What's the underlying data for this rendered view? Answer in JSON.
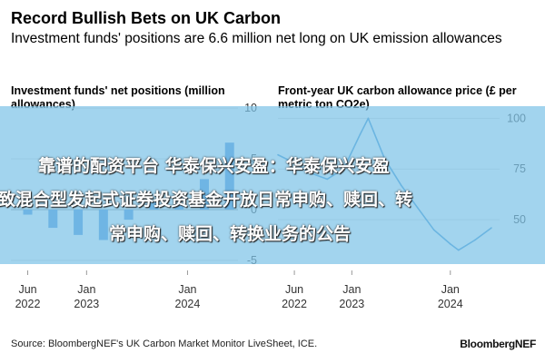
{
  "header": {
    "title": "Record Bullish Bets on UK Carbon",
    "subtitle": "Investment funds' positions are 6.6 million net long on UK emission allowances"
  },
  "chart_data": [
    {
      "type": "bar",
      "title": "Investment funds' net positions (million allowances)",
      "y_ticks": [
        "10",
        "5",
        "0",
        "-5"
      ],
      "ylim": [
        -6,
        11
      ],
      "x_ticks": [
        {
          "month": "Jun",
          "year": "2022"
        },
        {
          "month": "Jan",
          "year": "2023"
        },
        {
          "month": "Jan",
          "year": "2024"
        }
      ],
      "grid": true,
      "color": "#4a90d9",
      "x": [
        "2022-06",
        "2022-09",
        "2022-12",
        "2023-03",
        "2023-06",
        "2023-09",
        "2023-12",
        "2024-03",
        "2024-06"
      ],
      "values": [
        -0.5,
        -1.8,
        -2.5,
        -3.0,
        -1.0,
        0.8,
        0.5,
        3.0,
        6.6
      ]
    },
    {
      "type": "line",
      "title": "Front-year UK carbon allowance price (£ per metric ton CO2e)",
      "y_ticks": [
        "100",
        "75",
        "50"
      ],
      "ylim": [
        25,
        110
      ],
      "x_ticks": [
        {
          "month": "Jun",
          "year": "2022"
        },
        {
          "month": "Jan",
          "year": "2023"
        },
        {
          "month": "Jan",
          "year": "2024"
        }
      ],
      "grid": true,
      "color": "#3a8fd0",
      "series": [
        {
          "x": [
            "2022-04",
            "2022-06",
            "2022-08",
            "2022-10",
            "2022-12",
            "2023-02",
            "2023-03",
            "2023-05",
            "2023-07",
            "2023-09",
            "2023-11",
            "2024-01",
            "2024-02",
            "2024-04",
            "2024-06"
          ],
          "values": [
            82,
            78,
            73,
            70,
            75,
            92,
            100,
            80,
            67,
            56,
            45,
            38,
            35,
            40,
            46
          ]
        }
      ]
    }
  ],
  "overlay": {
    "line1": "靠谱的配资平台 华泰保兴安盈：华泰保兴安盈",
    "line2": "致混合型发起式证券投资基金开放日常申购、赎回、转",
    "line3": "常申购、赎回、转换业务的公告"
  },
  "footer": {
    "source": "Source: BloombergNEF's UK Carbon Market Monitor LiveSheet, ICE.",
    "brand": "BloombergNEF"
  }
}
